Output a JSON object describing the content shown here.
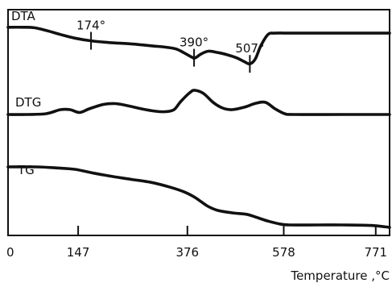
{
  "chart_data": {
    "type": "line",
    "xlabel": "Temperature ,°C",
    "xlim": [
      0,
      800
    ],
    "x_ticks": [
      {
        "value": 0,
        "label": "0"
      },
      {
        "value": 147,
        "label": "147"
      },
      {
        "value": 376,
        "label": "376"
      },
      {
        "value": 578,
        "label": "578"
      },
      {
        "value": 771,
        "label": "771"
      }
    ],
    "panels": [
      {
        "name": "DTA",
        "annotations": [
          {
            "x": 174,
            "label": "174°"
          },
          {
            "x": 390,
            "label": "390°"
          },
          {
            "x": 507,
            "label": "507°"
          }
        ]
      },
      {
        "name": "DTG",
        "annotations": []
      },
      {
        "name": "TG",
        "annotations": []
      }
    ],
    "series": [
      {
        "name": "DTA",
        "points": [
          [
            0,
            0.86
          ],
          [
            30,
            0.86
          ],
          [
            55,
            0.85
          ],
          [
            80,
            0.79
          ],
          [
            110,
            0.7
          ],
          [
            140,
            0.62
          ],
          [
            174,
            0.56
          ],
          [
            215,
            0.52
          ],
          [
            260,
            0.49
          ],
          [
            300,
            0.45
          ],
          [
            330,
            0.42
          ],
          [
            352,
            0.38
          ],
          [
            368,
            0.3
          ],
          [
            385,
            0.2
          ],
          [
            392,
            0.18
          ],
          [
            405,
            0.27
          ],
          [
            420,
            0.33
          ],
          [
            440,
            0.3
          ],
          [
            460,
            0.25
          ],
          [
            480,
            0.18
          ],
          [
            495,
            0.1
          ],
          [
            507,
            0.05
          ],
          [
            518,
            0.15
          ],
          [
            530,
            0.45
          ],
          [
            545,
            0.7
          ],
          [
            560,
            0.73
          ],
          [
            600,
            0.73
          ],
          [
            700,
            0.73
          ],
          [
            800,
            0.73
          ]
        ]
      },
      {
        "name": "DTG",
        "points": [
          [
            0,
            0.28
          ],
          [
            40,
            0.28
          ],
          [
            80,
            0.3
          ],
          [
            110,
            0.4
          ],
          [
            130,
            0.4
          ],
          [
            150,
            0.33
          ],
          [
            170,
            0.42
          ],
          [
            200,
            0.53
          ],
          [
            225,
            0.55
          ],
          [
            250,
            0.5
          ],
          [
            280,
            0.42
          ],
          [
            310,
            0.36
          ],
          [
            330,
            0.35
          ],
          [
            348,
            0.4
          ],
          [
            362,
            0.6
          ],
          [
            382,
            0.83
          ],
          [
            392,
            0.88
          ],
          [
            410,
            0.8
          ],
          [
            430,
            0.58
          ],
          [
            450,
            0.44
          ],
          [
            470,
            0.4
          ],
          [
            495,
            0.46
          ],
          [
            520,
            0.56
          ],
          [
            540,
            0.58
          ],
          [
            560,
            0.42
          ],
          [
            580,
            0.3
          ],
          [
            600,
            0.28
          ],
          [
            700,
            0.28
          ],
          [
            800,
            0.28
          ]
        ]
      },
      {
        "name": "TG",
        "points": [
          [
            0,
            0.9
          ],
          [
            60,
            0.9
          ],
          [
            100,
            0.88
          ],
          [
            140,
            0.85
          ],
          [
            180,
            0.77
          ],
          [
            220,
            0.7
          ],
          [
            260,
            0.64
          ],
          [
            300,
            0.58
          ],
          [
            340,
            0.48
          ],
          [
            370,
            0.38
          ],
          [
            390,
            0.28
          ],
          [
            405,
            0.18
          ],
          [
            420,
            0.08
          ],
          [
            440,
            0.0
          ],
          [
            470,
            -0.05
          ],
          [
            500,
            -0.08
          ],
          [
            520,
            -0.14
          ],
          [
            545,
            -0.22
          ],
          [
            570,
            -0.28
          ],
          [
            590,
            -0.3
          ],
          [
            650,
            -0.3
          ],
          [
            700,
            -0.3
          ],
          [
            760,
            -0.31
          ],
          [
            800,
            -0.35
          ]
        ]
      }
    ]
  }
}
